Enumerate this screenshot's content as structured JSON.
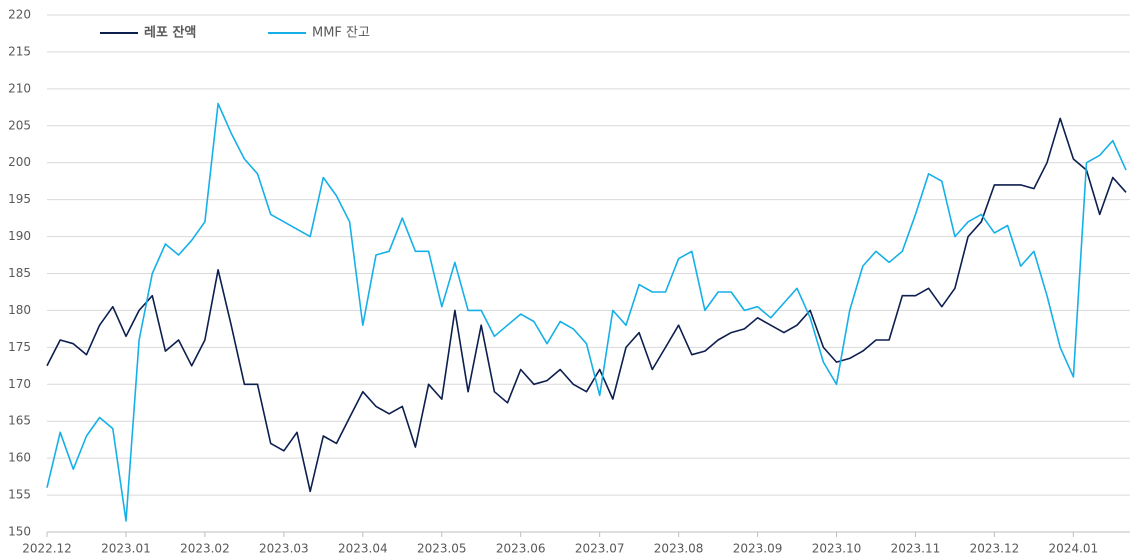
{
  "chart_data": {
    "type": "line",
    "categories": [
      "2022.12",
      null,
      null,
      null,
      null,
      null,
      "2023.01",
      null,
      null,
      null,
      null,
      null,
      "2023.02",
      null,
      null,
      null,
      null,
      null,
      "2023.03",
      null,
      null,
      null,
      null,
      null,
      "2023.04",
      null,
      null,
      null,
      null,
      null,
      "2023.05",
      null,
      null,
      null,
      null,
      null,
      "2023.06",
      null,
      null,
      null,
      null,
      null,
      "2023.07",
      null,
      null,
      null,
      null,
      null,
      "2023.08",
      null,
      null,
      null,
      null,
      null,
      "2023.09",
      null,
      null,
      null,
      null,
      null,
      "2023.10",
      null,
      null,
      null,
      null,
      null,
      "2023.11",
      null,
      null,
      null,
      null,
      null,
      "2023.12",
      null,
      null,
      null,
      null,
      null,
      "2024.01",
      null,
      null,
      null,
      null
    ],
    "series": [
      {
        "name": "레포 잔액",
        "color": "#0d1f4f",
        "values": [
          172.5,
          176,
          175.5,
          174,
          178,
          180.5,
          176.5,
          180,
          182,
          174.5,
          176,
          172.5,
          176,
          185.5,
          178,
          170,
          170,
          162,
          161,
          163.5,
          155.5,
          163,
          162,
          165.5,
          169,
          167,
          166,
          167,
          161.5,
          170,
          168,
          180,
          169,
          178,
          169,
          167.5,
          172,
          170,
          170.5,
          172,
          170,
          169,
          172,
          168,
          175,
          177,
          172,
          175,
          178,
          174,
          174.5,
          176,
          177,
          177.5,
          179,
          178,
          177,
          178,
          180,
          175,
          173,
          173.5,
          174.5,
          176,
          176,
          182,
          182,
          183,
          180.5,
          183,
          190,
          192,
          197,
          197,
          197,
          196.5,
          200,
          206,
          200.5,
          199,
          193,
          198,
          196
        ]
      },
      {
        "name": "MMF 잔고",
        "color": "#16b0e8",
        "values": [
          156,
          163.5,
          158.5,
          163,
          165.5,
          164,
          151.5,
          176,
          185,
          189,
          187.5,
          189.5,
          192,
          208,
          204,
          200.5,
          198.5,
          193,
          192,
          191,
          190,
          198,
          195.5,
          192,
          178,
          187.5,
          188,
          192.5,
          188,
          188,
          180.5,
          186.5,
          180,
          180,
          176.5,
          178,
          179.5,
          178.5,
          175.5,
          178.5,
          177.5,
          175.5,
          168.5,
          180,
          178,
          183.5,
          182.5,
          182.5,
          187,
          188,
          180,
          182.5,
          182.5,
          180,
          180.5,
          179,
          181,
          183,
          179,
          173,
          170,
          180,
          186,
          188,
          186.5,
          188,
          193,
          198.5,
          197.5,
          190,
          192,
          193,
          190.5,
          191.5,
          186,
          188,
          182,
          175,
          171,
          200,
          201,
          203,
          199
        ]
      }
    ],
    "ylim": [
      150,
      220
    ],
    "yticks": [
      150,
      155,
      160,
      165,
      170,
      175,
      180,
      185,
      190,
      195,
      200,
      205,
      210,
      215,
      220
    ],
    "grid": true,
    "legend": "top-left"
  }
}
